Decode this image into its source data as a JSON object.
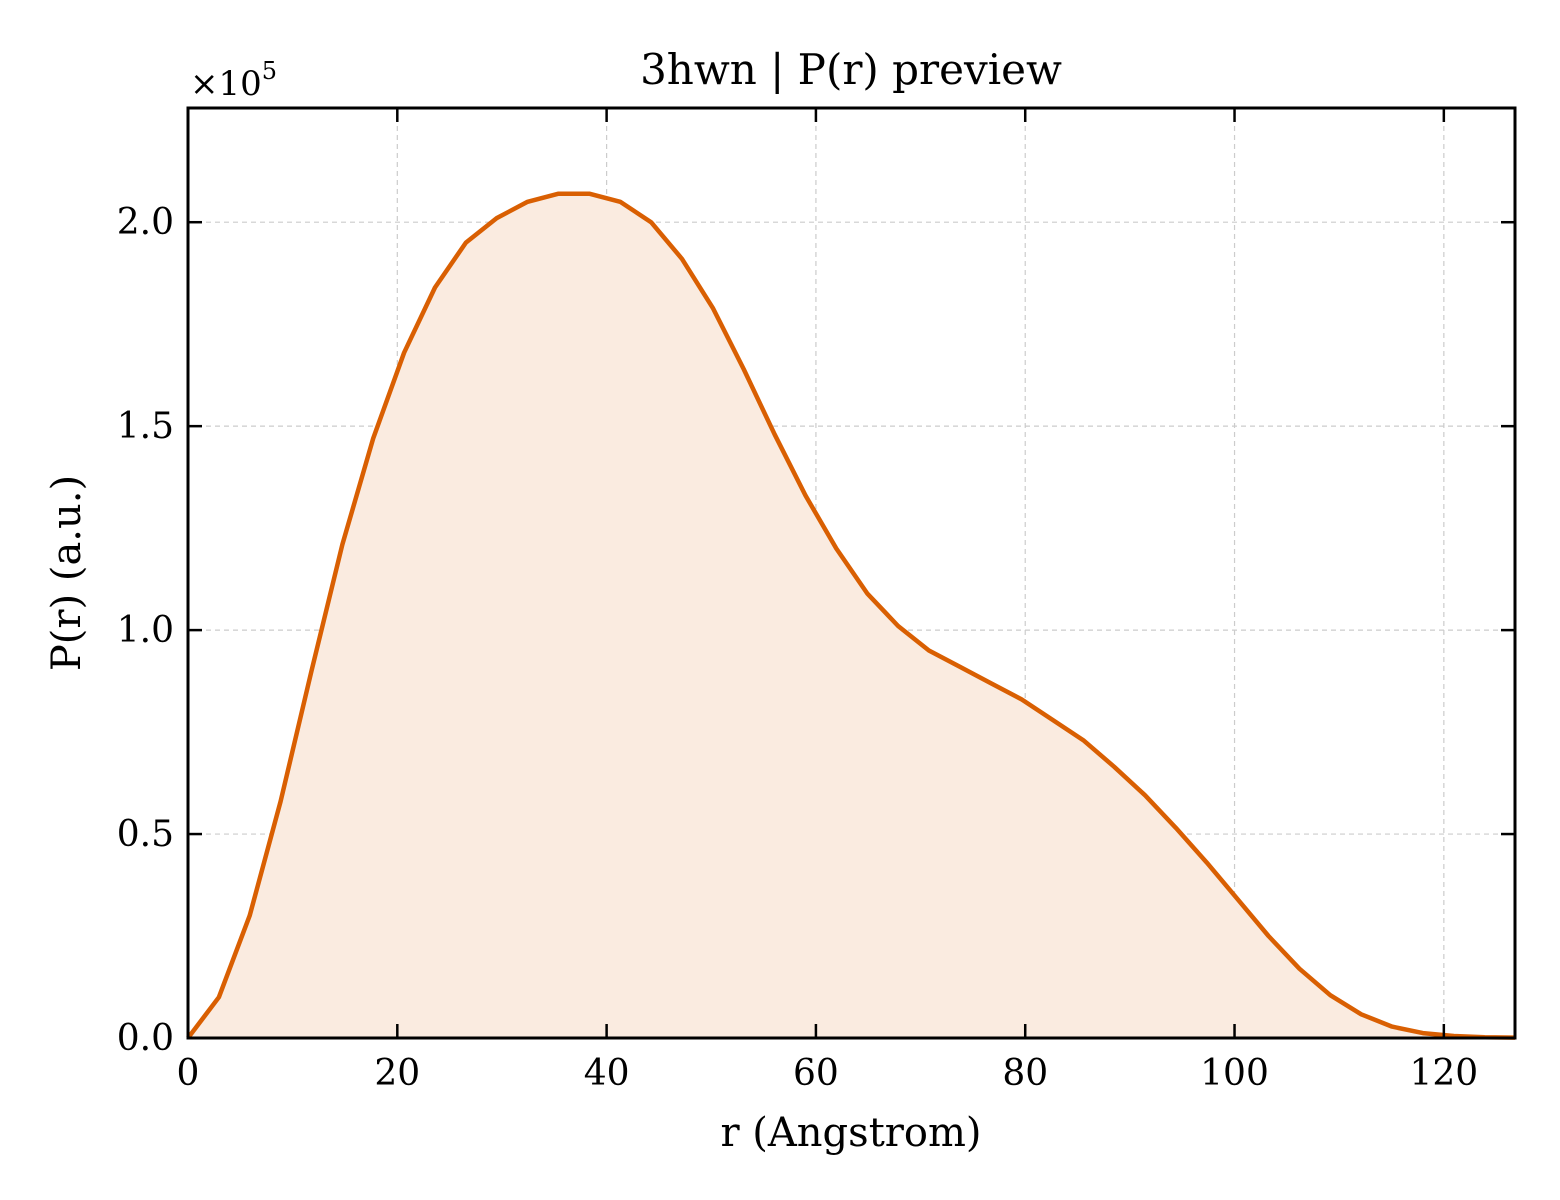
{
  "chart_data": {
    "type": "area",
    "title": "3hwn | P(r) preview",
    "xlabel": "r (Angstrom)",
    "ylabel": "P(r) (a.u.)",
    "y_multiplier": "×10",
    "y_multiplier_exp": "5",
    "xlim": [
      0,
      126.8
    ],
    "ylim": [
      0,
      2.28
    ],
    "xticks": [
      0,
      20,
      40,
      60,
      80,
      100,
      120
    ],
    "yticks": [
      0.0,
      0.5,
      1.0,
      1.5,
      2.0
    ],
    "xtick_labels": [
      "0",
      "20",
      "40",
      "60",
      "80",
      "100",
      "120"
    ],
    "ytick_labels": [
      "0.0",
      "0.5",
      "1.0",
      "1.5",
      "2.0"
    ],
    "grid": true,
    "line_color": "#d95f02",
    "fill_color": "#faebe0",
    "series": [
      {
        "x": [
          0,
          2.95,
          5.9,
          8.85,
          11.8,
          14.75,
          17.7,
          20.65,
          23.6,
          26.55,
          29.5,
          32.45,
          35.4,
          38.35,
          41.3,
          44.25,
          47.2,
          50.15,
          53.1,
          56.05,
          59.0,
          61.95,
          64.9,
          67.85,
          70.8,
          73.75,
          76.7,
          79.65,
          82.6,
          85.55,
          88.5,
          91.45,
          94.4,
          97.35,
          100.3,
          103.25,
          106.2,
          109.15,
          112.1,
          115.05,
          118.0,
          120.95,
          123.9,
          126.8
        ],
        "y": [
          0.0,
          0.1,
          0.3,
          0.58,
          0.9,
          1.21,
          1.47,
          1.68,
          1.84,
          1.95,
          2.01,
          2.05,
          2.07,
          2.07,
          2.05,
          2.0,
          1.91,
          1.79,
          1.64,
          1.48,
          1.33,
          1.2,
          1.09,
          1.01,
          0.95,
          0.91,
          0.87,
          0.83,
          0.78,
          0.73,
          0.665,
          0.595,
          0.515,
          0.43,
          0.34,
          0.25,
          0.17,
          0.105,
          0.058,
          0.028,
          0.012,
          0.005,
          0.002,
          0.001
        ]
      }
    ]
  }
}
